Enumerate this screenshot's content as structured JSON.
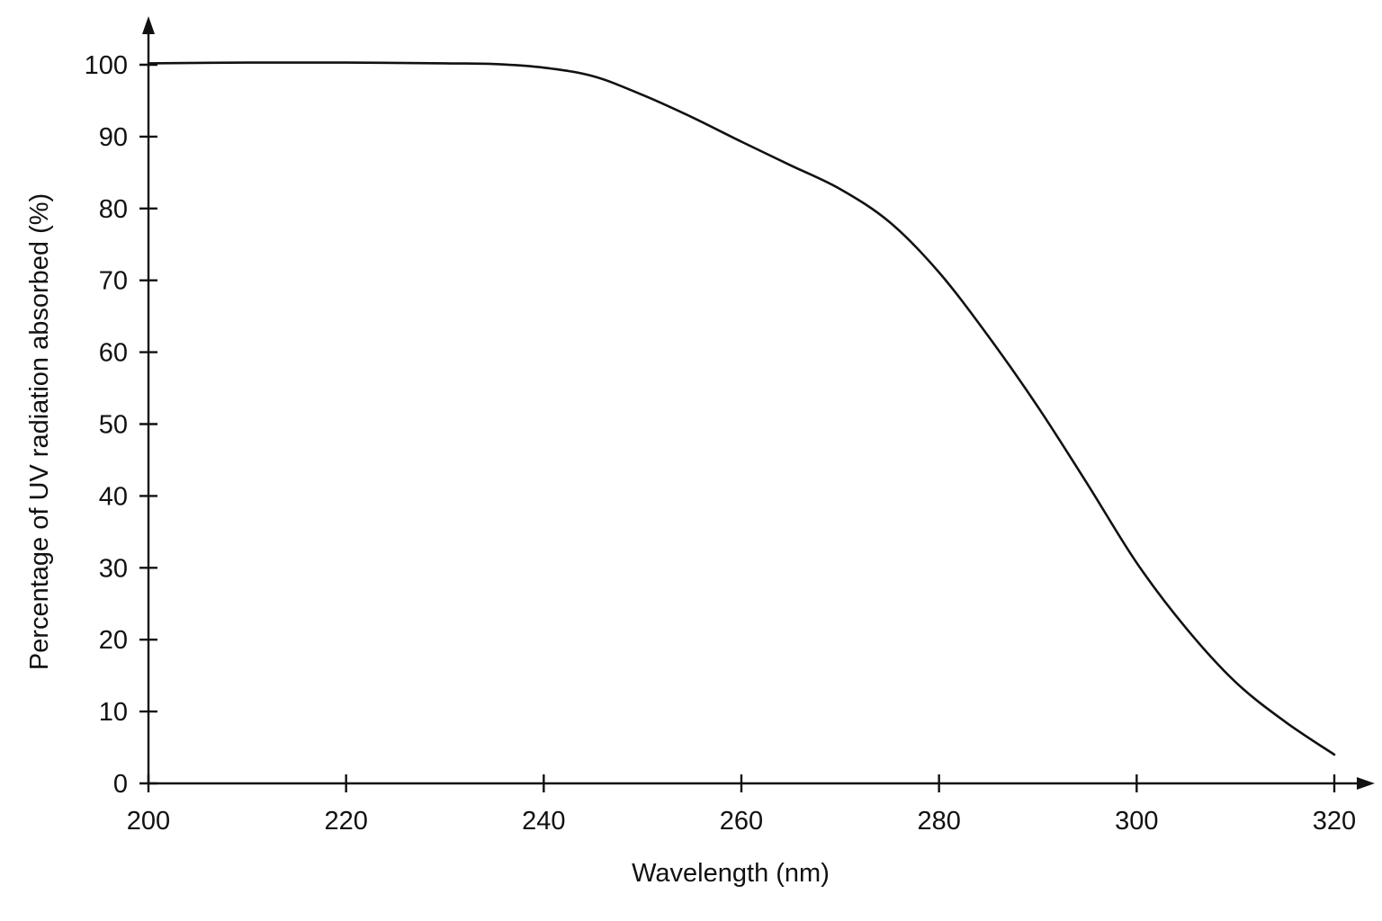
{
  "chart_data": {
    "type": "line",
    "title": "",
    "xlabel": "Wavelength (nm)",
    "ylabel": "Percentage of UV radiation absorbed (%)",
    "xlim": [
      200,
      320
    ],
    "ylim": [
      0,
      100
    ],
    "x_ticks": [
      200,
      220,
      240,
      260,
      280,
      300,
      320
    ],
    "y_ticks": [
      0,
      10,
      20,
      30,
      40,
      50,
      60,
      70,
      80,
      90,
      100
    ],
    "grid": false,
    "legend": "none",
    "series": [
      {
        "x": [
          200,
          210,
          220,
          230,
          235,
          240,
          245,
          250,
          255,
          260,
          265,
          270,
          275,
          280,
          285,
          290,
          295,
          300,
          305,
          310,
          315,
          320
        ],
        "y": [
          100.2,
          100.3,
          100.3,
          100.2,
          100.1,
          99.6,
          98.4,
          95.8,
          92.7,
          89.3,
          86,
          82.7,
          78.1,
          71.1,
          62.2,
          52.4,
          41.7,
          30.7,
          21.6,
          14.1,
          8.6,
          4
        ]
      }
    ]
  }
}
